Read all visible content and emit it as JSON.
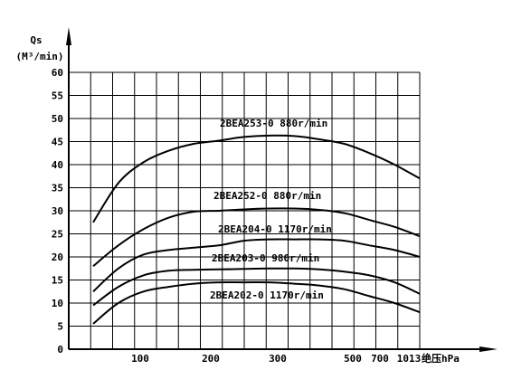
{
  "chart_data": {
    "type": "line",
    "title": "",
    "ylabel": "Qs",
    "yunit": "(M³/min)",
    "xlabel": "绝压hPa",
    "ylim": [
      0,
      60
    ],
    "y_ticks": [
      0,
      5,
      10,
      15,
      20,
      25,
      30,
      35,
      40,
      45,
      50,
      55,
      60
    ],
    "x_tick_labels": [
      "100",
      "200",
      "300",
      "500",
      "700",
      "1013"
    ],
    "grid": true,
    "series": [
      {
        "name": "2BEA253-0 880r/min",
        "values": [
          27.5,
          36,
          40.5,
          43,
          44.5,
          45.2,
          46,
          46.3,
          46.2,
          45.5,
          44.5,
          42.5,
          40,
          37
        ]
      },
      {
        "name": "2BEA252-0 880r/min",
        "values": [
          18,
          22.5,
          26,
          28.5,
          29.8,
          30,
          30.3,
          30.5,
          30.5,
          30.2,
          29.5,
          28,
          26.5,
          24.5
        ]
      },
      {
        "name": "2BEA204-0 1170r/min",
        "values": [
          12.5,
          17.5,
          20.5,
          21.5,
          22,
          22.5,
          23.5,
          23.8,
          23.8,
          23.8,
          23.5,
          22.5,
          21.5,
          20
        ]
      },
      {
        "name": "2BEA203-0 980r/min",
        "values": [
          9.5,
          13.5,
          16,
          17,
          17.2,
          17.3,
          17.4,
          17.5,
          17.5,
          17.3,
          16.8,
          16,
          14.5,
          12
        ]
      },
      {
        "name": "2BEA202-0 1170r/min",
        "values": [
          5.5,
          10,
          12.5,
          13.5,
          14.2,
          14.5,
          14.5,
          14.5,
          14.2,
          13.8,
          13,
          11.5,
          10,
          8
        ]
      }
    ]
  }
}
